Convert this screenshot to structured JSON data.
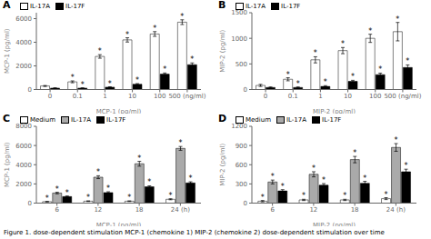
{
  "chart_data": [
    {
      "type": "bar",
      "title": "A",
      "xlabel": "MCP-1 (pg/ml)",
      "ylabel": "MCP-1 (pg/ml)",
      "categories": [
        "0",
        "0.1",
        "1",
        "10",
        "100",
        "500 (ng/ml)"
      ],
      "ylim": [
        0,
        6500
      ],
      "yticks": [
        0,
        2000,
        4000,
        6000
      ],
      "grid": false,
      "legend": "upper left",
      "series": [
        {
          "name": "IL-17A",
          "color": "#FFFFFF",
          "values": [
            300,
            650,
            2800,
            4200,
            4700,
            5700
          ],
          "error": [
            40,
            80,
            150,
            180,
            200,
            200
          ],
          "annotations": [
            null,
            "*",
            "*",
            "*",
            "*",
            "*"
          ]
        },
        {
          "name": "IL-17F",
          "color": "#000000",
          "values": [
            120,
            120,
            200,
            450,
            1300,
            2100
          ],
          "error": [
            20,
            20,
            30,
            50,
            100,
            150
          ],
          "annotations": [
            null,
            "*",
            "*",
            "*",
            "*",
            "*"
          ]
        }
      ]
    },
    {
      "type": "bar",
      "title": "B",
      "xlabel": "MIP-2 (pg/ml)",
      "ylabel": "MIP-2 (pg/ml)",
      "categories": [
        "0",
        "0.1",
        "1",
        "10",
        "100",
        "500 (ng/ml)"
      ],
      "ylim": [
        0,
        1500
      ],
      "yticks": [
        0,
        500,
        1000,
        1500
      ],
      "grid": false,
      "legend": "upper left",
      "series": [
        {
          "name": "IL-17A",
          "color": "#FFFFFF",
          "values": [
            80,
            200,
            580,
            760,
            1000,
            1130
          ],
          "error": [
            20,
            30,
            60,
            60,
            80,
            180
          ],
          "annotations": [
            null,
            "*",
            "*",
            "*",
            "*",
            "*"
          ]
        },
        {
          "name": "IL-17F",
          "color": "#000000",
          "values": [
            40,
            40,
            60,
            160,
            290,
            430
          ],
          "error": [
            10,
            10,
            15,
            20,
            30,
            50
          ],
          "annotations": [
            null,
            "*",
            "*",
            "*",
            "*",
            "*"
          ]
        }
      ]
    },
    {
      "type": "bar",
      "title": "C",
      "xlabel": "MCP-1 (pg/ml)",
      "ylabel": "MCP-1 (pg/ml)",
      "categories": [
        "6",
        "12",
        "18",
        "24 (h)"
      ],
      "ylim": [
        0,
        8000
      ],
      "yticks": [
        0,
        2000,
        4000,
        6000,
        8000
      ],
      "grid": false,
      "legend": "upper left",
      "series": [
        {
          "name": "Medium",
          "color": "#FFFFFF",
          "values": [
            150,
            200,
            200,
            400
          ],
          "error": [
            20,
            30,
            30,
            50
          ],
          "annotations": [
            "*",
            "*",
            "*",
            "*"
          ]
        },
        {
          "name": "IL-17A",
          "color": "#AAAAAA",
          "values": [
            1050,
            2700,
            4100,
            5700
          ],
          "error": [
            80,
            150,
            250,
            200
          ],
          "annotations": [
            "*",
            "*",
            "*",
            "*"
          ]
        },
        {
          "name": "IL-17F",
          "color": "#000000",
          "values": [
            680,
            1100,
            1700,
            2100
          ],
          "error": [
            60,
            80,
            100,
            120
          ],
          "annotations": [
            "*",
            "*",
            "*",
            "*"
          ]
        }
      ]
    },
    {
      "type": "bar",
      "title": "D",
      "xlabel": "MIP-2 (pg/ml)",
      "ylabel": "MIP-2 (pg/ml)",
      "categories": [
        "6",
        "12",
        "18",
        "24 (h)"
      ],
      "ylim": [
        0,
        1200
      ],
      "yticks": [
        0,
        300,
        600,
        900,
        1200
      ],
      "grid": false,
      "legend": "upper left",
      "series": [
        {
          "name": "Medium",
          "color": "#FFFFFF",
          "values": [
            30,
            50,
            50,
            70
          ],
          "error": [
            10,
            10,
            10,
            15
          ],
          "annotations": [
            "*",
            "*",
            "*",
            "*"
          ]
        },
        {
          "name": "IL-17A",
          "color": "#AAAAAA",
          "values": [
            330,
            450,
            680,
            870
          ],
          "error": [
            30,
            40,
            50,
            60
          ],
          "annotations": [
            "*",
            "*",
            "*",
            "*"
          ]
        },
        {
          "name": "IL-17F",
          "color": "#000000",
          "values": [
            190,
            280,
            310,
            490
          ],
          "error": [
            20,
            25,
            30,
            40
          ],
          "annotations": [
            "*",
            "*",
            "*",
            "*"
          ]
        }
      ]
    }
  ],
  "annotations": [
    "Figure 1. dose-dependent stimulation MCP-1 (chemokine 1) MIP-2 (chemokine 2) dose-dependent stimulation over time"
  ]
}
